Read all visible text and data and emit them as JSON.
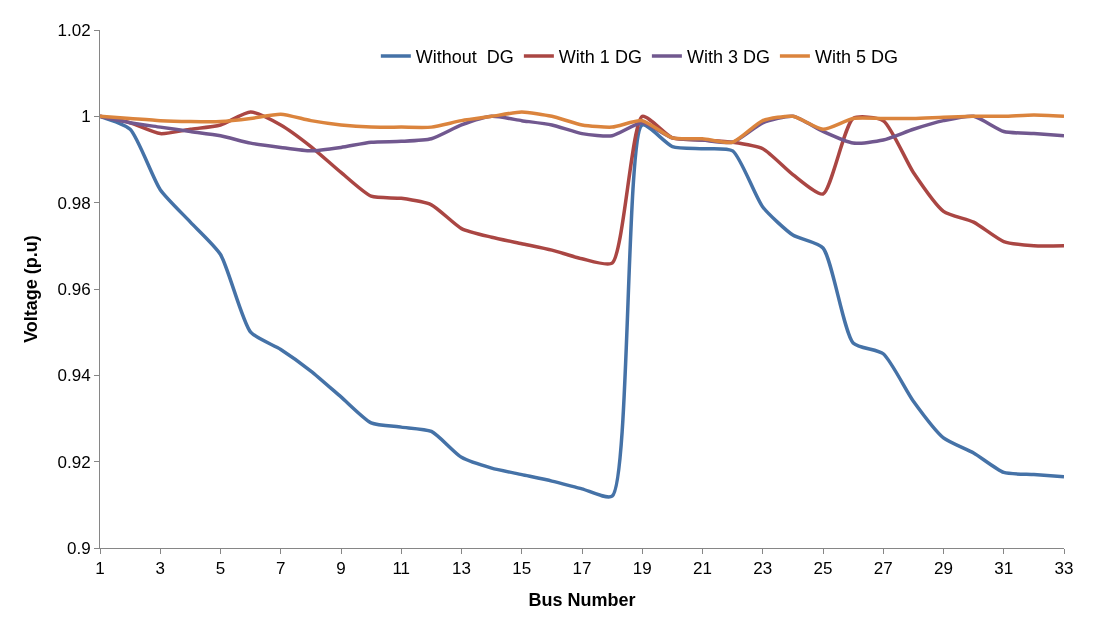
{
  "chart_data": {
    "type": "line",
    "xlabel": "Bus Number",
    "ylabel": "Voltage (p.u)",
    "x": [
      1,
      2,
      3,
      4,
      5,
      6,
      7,
      8,
      9,
      10,
      11,
      12,
      13,
      14,
      15,
      16,
      17,
      18,
      19,
      20,
      21,
      22,
      23,
      24,
      25,
      26,
      27,
      28,
      29,
      30,
      31,
      32,
      33
    ],
    "xlim": [
      1,
      33
    ],
    "xticks": [
      1,
      3,
      5,
      7,
      9,
      11,
      13,
      15,
      17,
      19,
      21,
      23,
      25,
      27,
      29,
      31,
      33
    ],
    "ylim": [
      0.9,
      1.02
    ],
    "yticks": [
      0.9,
      0.92,
      0.94,
      0.96,
      0.98,
      1,
      1.02
    ],
    "legend": "top",
    "marker": "none",
    "line_style": "solid",
    "series": [
      {
        "name": "Without  DG",
        "color": "#4572a7",
        "values": [
          1,
          0.997,
          0.983,
          0.9755,
          0.968,
          0.95,
          0.946,
          0.941,
          0.935,
          0.929,
          0.928,
          0.927,
          0.921,
          0.9185,
          0.917,
          0.9155,
          0.9137,
          0.912,
          0.998,
          0.993,
          0.9925,
          0.992,
          0.979,
          0.9725,
          0.9695,
          0.9475,
          0.945,
          0.934,
          0.9255,
          0.922,
          0.9175,
          0.917,
          0.9165
        ]
      },
      {
        "name": "With 1 DG",
        "color": "#aa4643",
        "values": [
          1,
          0.9985,
          0.996,
          0.997,
          0.998,
          1.001,
          0.998,
          0.993,
          0.987,
          0.9815,
          0.981,
          0.9795,
          0.974,
          0.972,
          0.9705,
          0.969,
          0.967,
          0.966,
          1.0,
          0.995,
          0.9945,
          0.994,
          0.9925,
          0.9865,
          0.982,
          0.9995,
          0.999,
          0.987,
          0.978,
          0.9755,
          0.971,
          0.97,
          0.97
        ]
      },
      {
        "name": "With 3 DG",
        "color": "#71588f",
        "values": [
          1,
          0.9985,
          0.9975,
          0.9965,
          0.9955,
          0.9938,
          0.9928,
          0.992,
          0.9928,
          0.994,
          0.9942,
          0.9948,
          0.998,
          1.0,
          0.999,
          0.998,
          0.996,
          0.9955,
          0.9985,
          0.995,
          0.9945,
          0.994,
          0.9985,
          1.0,
          0.9965,
          0.9938,
          0.9945,
          0.997,
          0.999,
          1.0,
          0.9965,
          0.996,
          0.9955
        ]
      },
      {
        "name": "With 5 DG",
        "color": "#db843d",
        "values": [
          1,
          0.9995,
          0.999,
          0.9988,
          0.9988,
          0.9995,
          1.0005,
          0.999,
          0.998,
          0.9975,
          0.9975,
          0.9975,
          0.999,
          1.0,
          1.001,
          1.0,
          0.998,
          0.9975,
          0.999,
          0.995,
          0.9948,
          0.994,
          0.999,
          1.0,
          0.997,
          0.9995,
          0.9995,
          0.9995,
          0.9998,
          1.0,
          1.0,
          1.0003,
          1.0
        ]
      }
    ]
  }
}
